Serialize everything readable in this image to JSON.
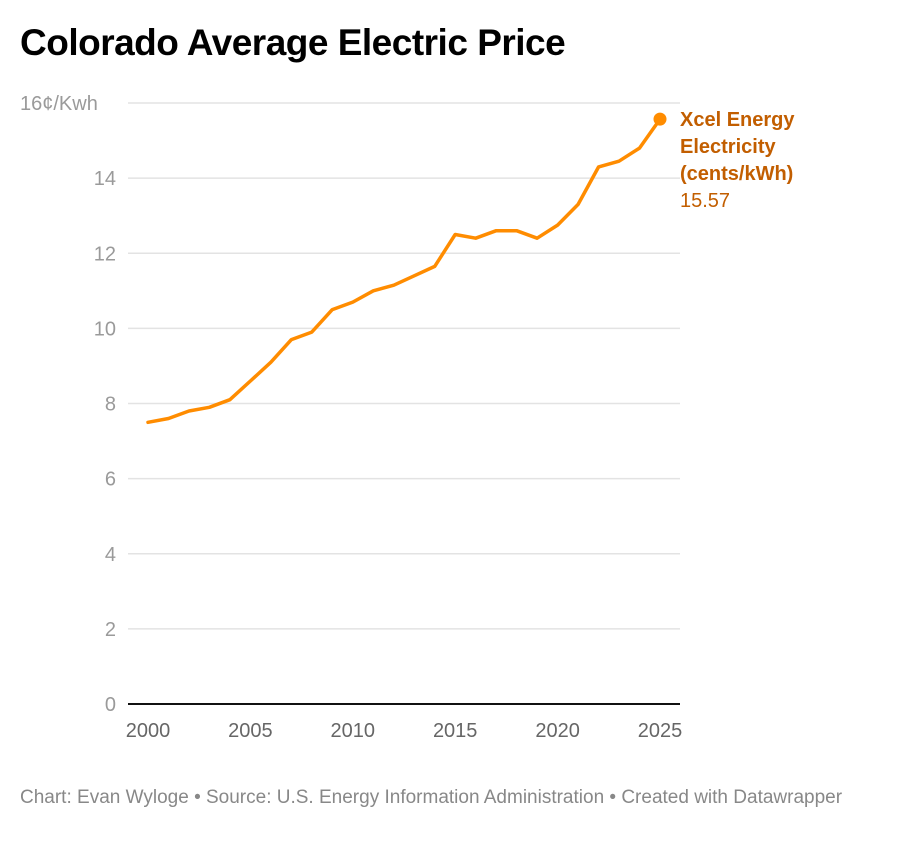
{
  "chart_data": {
    "type": "line",
    "title": "Colorado Average Electric Price",
    "xlabel": "",
    "ylabel": "¢/Kwh",
    "y_unit_suffix": "¢/Kwh",
    "ylim": [
      0,
      16
    ],
    "xlim": [
      2000,
      2025
    ],
    "grid": true,
    "y_ticks": [
      0,
      2,
      4,
      6,
      8,
      10,
      12,
      14,
      16
    ],
    "y_tick_labels": [
      "0",
      "2",
      "4",
      "6",
      "8",
      "10",
      "12",
      "14",
      "16¢/Kwh"
    ],
    "x_ticks": [
      2000,
      2005,
      2010,
      2015,
      2020,
      2025
    ],
    "x_tick_labels": [
      "2000",
      "2005",
      "2010",
      "2015",
      "2020",
      "2025"
    ],
    "x": [
      2000,
      2001,
      2002,
      2003,
      2004,
      2005,
      2006,
      2007,
      2008,
      2009,
      2010,
      2011,
      2012,
      2013,
      2014,
      2015,
      2016,
      2017,
      2018,
      2019,
      2020,
      2021,
      2022,
      2023,
      2024,
      2025
    ],
    "series": [
      {
        "name": "Xcel Energy Electricity (cents/kWh)",
        "color": "#ff8c00",
        "label_color": "#c25e00",
        "values": [
          7.5,
          7.6,
          7.8,
          7.9,
          8.1,
          8.6,
          9.1,
          9.7,
          9.9,
          10.5,
          10.7,
          11.0,
          11.15,
          11.4,
          11.65,
          12.5,
          12.4,
          12.6,
          12.6,
          12.4,
          12.75,
          13.3,
          14.3,
          14.45,
          14.8,
          15.57
        ],
        "end_label_lines": [
          "Xcel Energy",
          "Electricity",
          "(cents/kWh)"
        ],
        "end_value_label": "15.57"
      }
    ],
    "legend": "direct-label-right"
  },
  "footer": {
    "text": "Chart: Evan Wyloge • Source: U.S. Energy Information Administration • Created with Datawrapper"
  }
}
